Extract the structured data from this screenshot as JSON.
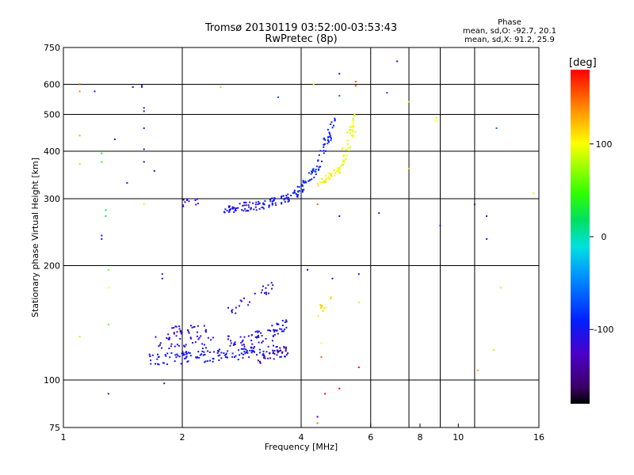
{
  "chart_data": {
    "type": "scatter",
    "title": "Tromsø 20130119 03:52:00-03:53:43",
    "subtitle": "RwPretec (8p)",
    "xlabel": "Frequency [MHz]",
    "ylabel": "Stationary phase Virtual Height [km]",
    "xscale": "log",
    "yscale": "log",
    "xlim": [
      1,
      16
    ],
    "ylim": [
      75,
      750
    ],
    "xticks": [
      1,
      2,
      4,
      6,
      8,
      10,
      16
    ],
    "xtick_labels": [
      "1",
      "2",
      "4",
      "6",
      "8",
      "10",
      "16"
    ],
    "x_gridlines": [
      2,
      4,
      6,
      7.5,
      9,
      11
    ],
    "yticks": [
      75,
      100,
      200,
      300,
      400,
      500,
      600,
      750
    ],
    "ytick_labels": [
      "75",
      "100",
      "200",
      "300",
      "400",
      "500",
      "600",
      "750"
    ],
    "y_gridlines": [
      100,
      200,
      300,
      400,
      500,
      600
    ],
    "grid": true,
    "phase_info": {
      "heading": "Phase",
      "line_o": "mean, sd,O:  -92.7, 20.1",
      "line_x": "mean, sd,X:  91.2, 25.9"
    },
    "colorbar": {
      "label": "[deg]",
      "min": -180,
      "max": 180,
      "ticks": [
        100,
        0,
        -100
      ],
      "tick_labels": [
        "100",
        "0",
        "-100"
      ],
      "colormap": "rainbow"
    },
    "series": [
      {
        "traces": [
          {
            "f0": 1.65,
            "f1": 3.7,
            "h0": 113,
            "h1": 119,
            "n": 120,
            "spread": 4,
            "phase": -100,
            "ps": 12
          },
          {
            "f0": 1.7,
            "f1": 3.6,
            "h0": 123,
            "h1": 125,
            "n": 90,
            "spread": 7,
            "phase": -108,
            "ps": 12
          },
          {
            "f0": 1.8,
            "f1": 2.3,
            "h0": 133,
            "h1": 135,
            "n": 30,
            "spread": 5,
            "phase": -115,
            "ps": 10
          },
          {
            "f0": 3.0,
            "f1": 3.7,
            "h0": 128,
            "h1": 140,
            "n": 40,
            "spread": 5,
            "phase": -105,
            "ps": 10
          },
          {
            "f0": 3.1,
            "f1": 3.7,
            "h0": 112,
            "h1": 120,
            "n": 25,
            "spread": 3,
            "phase": -140,
            "ps": 10
          },
          {
            "f0": 2.6,
            "f1": 3.5,
            "h0": 150,
            "h1": 180,
            "n": 25,
            "spread": 6,
            "phase": -110,
            "ps": 12
          },
          {
            "f0": 2.0,
            "f1": 2.2,
            "h0": 292,
            "h1": 296,
            "n": 12,
            "spread": 6,
            "phase": -120,
            "ps": 10
          },
          {
            "f0": 2.5,
            "f1": 3.2,
            "h0": 282,
            "h1": 288,
            "n": 55,
            "spread": 8,
            "phase": -105,
            "ps": 12
          },
          {
            "f0": 3.2,
            "f1": 3.85,
            "h0": 288,
            "h1": 305,
            "n": 45,
            "spread": 8,
            "phase": -100,
            "ps": 12
          },
          {
            "f0": 3.85,
            "f1": 4.4,
            "h0": 305,
            "h1": 360,
            "n": 45,
            "spread": 12,
            "phase": -90,
            "ps": 12
          },
          {
            "f0": 4.4,
            "f1": 4.9,
            "h0": 370,
            "h1": 480,
            "n": 40,
            "spread": 25,
            "phase": -95,
            "ps": 12
          },
          {
            "f0": 4.4,
            "f1": 5.0,
            "h0": 325,
            "h1": 360,
            "n": 35,
            "spread": 8,
            "phase": 105,
            "ps": 10
          },
          {
            "f0": 5.0,
            "f1": 5.5,
            "h0": 360,
            "h1": 480,
            "n": 45,
            "spread": 30,
            "phase": 95,
            "ps": 12
          },
          {
            "f0": 4.4,
            "f1": 4.8,
            "h0": 150,
            "h1": 165,
            "n": 12,
            "spread": 5,
            "phase": 110,
            "ps": 10
          }
        ],
        "points": [
          [
            1.1,
            600,
            160
          ],
          [
            1.1,
            575,
            140
          ],
          [
            1.1,
            440,
            130
          ],
          [
            1.1,
            370,
            120
          ],
          [
            1.1,
            130,
            80
          ],
          [
            1.2,
            575,
            -120
          ],
          [
            1.25,
            395,
            30
          ],
          [
            1.25,
            375,
            40
          ],
          [
            1.25,
            240,
            -90
          ],
          [
            1.25,
            235,
            -120
          ],
          [
            1.28,
            280,
            20
          ],
          [
            1.28,
            270,
            30
          ],
          [
            1.3,
            195,
            60
          ],
          [
            1.3,
            175,
            100
          ],
          [
            1.3,
            140,
            60
          ],
          [
            1.3,
            92,
            -120
          ],
          [
            1.35,
            430,
            -120
          ],
          [
            1.45,
            330,
            -130
          ],
          [
            1.5,
            590,
            -130
          ],
          [
            1.58,
            595,
            -130
          ],
          [
            1.58,
            590,
            -80
          ],
          [
            1.6,
            520,
            -100
          ],
          [
            1.6,
            510,
            -110
          ],
          [
            1.6,
            460,
            -90
          ],
          [
            1.6,
            405,
            -100
          ],
          [
            1.6,
            375,
            -140
          ],
          [
            1.6,
            290,
            90
          ],
          [
            1.7,
            355,
            -130
          ],
          [
            1.78,
            190,
            -120
          ],
          [
            1.78,
            185,
            -110
          ],
          [
            1.8,
            98,
            -90
          ],
          [
            2.5,
            590,
            120
          ],
          [
            3.5,
            555,
            -80
          ],
          [
            4.15,
            195,
            -110
          ],
          [
            4.3,
            600,
            110
          ],
          [
            4.4,
            290,
            150
          ],
          [
            4.4,
            80,
            -120
          ],
          [
            4.4,
            77,
            150
          ],
          [
            4.5,
            125,
            100
          ],
          [
            4.5,
            115,
            150
          ],
          [
            4.6,
            92,
            180
          ],
          [
            4.8,
            185,
            -110
          ],
          [
            5.0,
            640,
            -90
          ],
          [
            5.0,
            560,
            -60
          ],
          [
            5.0,
            95,
            180
          ],
          [
            5.0,
            270,
            -100
          ],
          [
            5.5,
            610,
            160
          ],
          [
            5.5,
            595,
            160
          ],
          [
            5.6,
            190,
            -110
          ],
          [
            5.6,
            108,
            180
          ],
          [
            5.6,
            160,
            110
          ],
          [
            6.3,
            275,
            -120
          ],
          [
            6.6,
            570,
            -80
          ],
          [
            7.0,
            690,
            -130
          ],
          [
            7.5,
            360,
            120
          ],
          [
            7.5,
            540,
            110
          ],
          [
            8.8,
            490,
            110
          ],
          [
            8.8,
            480,
            100
          ],
          [
            9.0,
            255,
            -110
          ],
          [
            11.0,
            290,
            -130
          ],
          [
            11.2,
            106,
            130
          ],
          [
            11.8,
            235,
            -100
          ],
          [
            11.8,
            270,
            -100
          ],
          [
            12.3,
            120,
            80
          ],
          [
            12.5,
            460,
            -60
          ],
          [
            12.8,
            175,
            110
          ],
          [
            15.5,
            310,
            110
          ]
        ]
      }
    ]
  }
}
